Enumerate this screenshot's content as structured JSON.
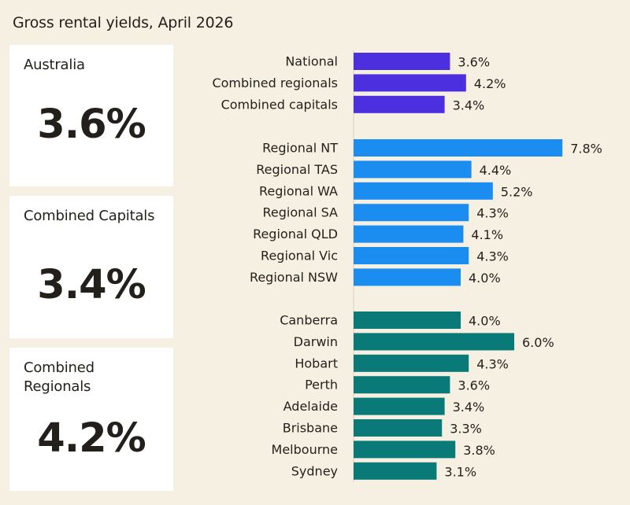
{
  "title": "Gross rental yields, April 2026",
  "cards": [
    {
      "label": "Australia",
      "value": "3.6%"
    },
    {
      "label": "Combined Capitals",
      "value": "3.4%"
    },
    {
      "label": "Combined Regionals",
      "value": "4.2%"
    }
  ],
  "colors": {
    "background": "#f6f0e3",
    "card": "#ffffff",
    "headline_group": "#4c2fde",
    "regional_group": "#1b8cf0",
    "capital_group": "#0a7a78",
    "text": "#231f1a"
  },
  "chart_data": {
    "type": "bar",
    "orientation": "horizontal",
    "title": "Gross rental yields, April 2026",
    "xlim": [
      0,
      8
    ],
    "unit": "%",
    "groups": [
      {
        "color": "#4c2fde",
        "categories": [
          "National",
          "Combined regionals",
          "Combined capitals"
        ],
        "values": [
          3.6,
          4.2,
          3.4
        ],
        "labels": [
          "3.6%",
          "4.2%",
          "3.4%"
        ]
      },
      {
        "color": "#1b8cf0",
        "categories": [
          "Regional NT",
          "Regional TAS",
          "Regional WA",
          "Regional SA",
          "Regional QLD",
          "Regional Vic",
          "Regional NSW"
        ],
        "values": [
          7.8,
          4.4,
          5.2,
          4.3,
          4.1,
          4.3,
          4.0
        ],
        "labels": [
          "7.8%",
          "4.4%",
          "5.2%",
          "4.3%",
          "4.1%",
          "4.3%",
          "4.0%"
        ]
      },
      {
        "color": "#0a7a78",
        "categories": [
          "Canberra",
          "Darwin",
          "Hobart",
          "Perth",
          "Adelaide",
          "Brisbane",
          "Melbourne",
          "Sydney"
        ],
        "values": [
          4.0,
          6.0,
          4.3,
          3.6,
          3.4,
          3.3,
          3.8,
          3.1
        ],
        "labels": [
          "4.0%",
          "6.0%",
          "4.3%",
          "3.6%",
          "3.4%",
          "3.3%",
          "3.8%",
          "3.1%"
        ]
      }
    ]
  }
}
